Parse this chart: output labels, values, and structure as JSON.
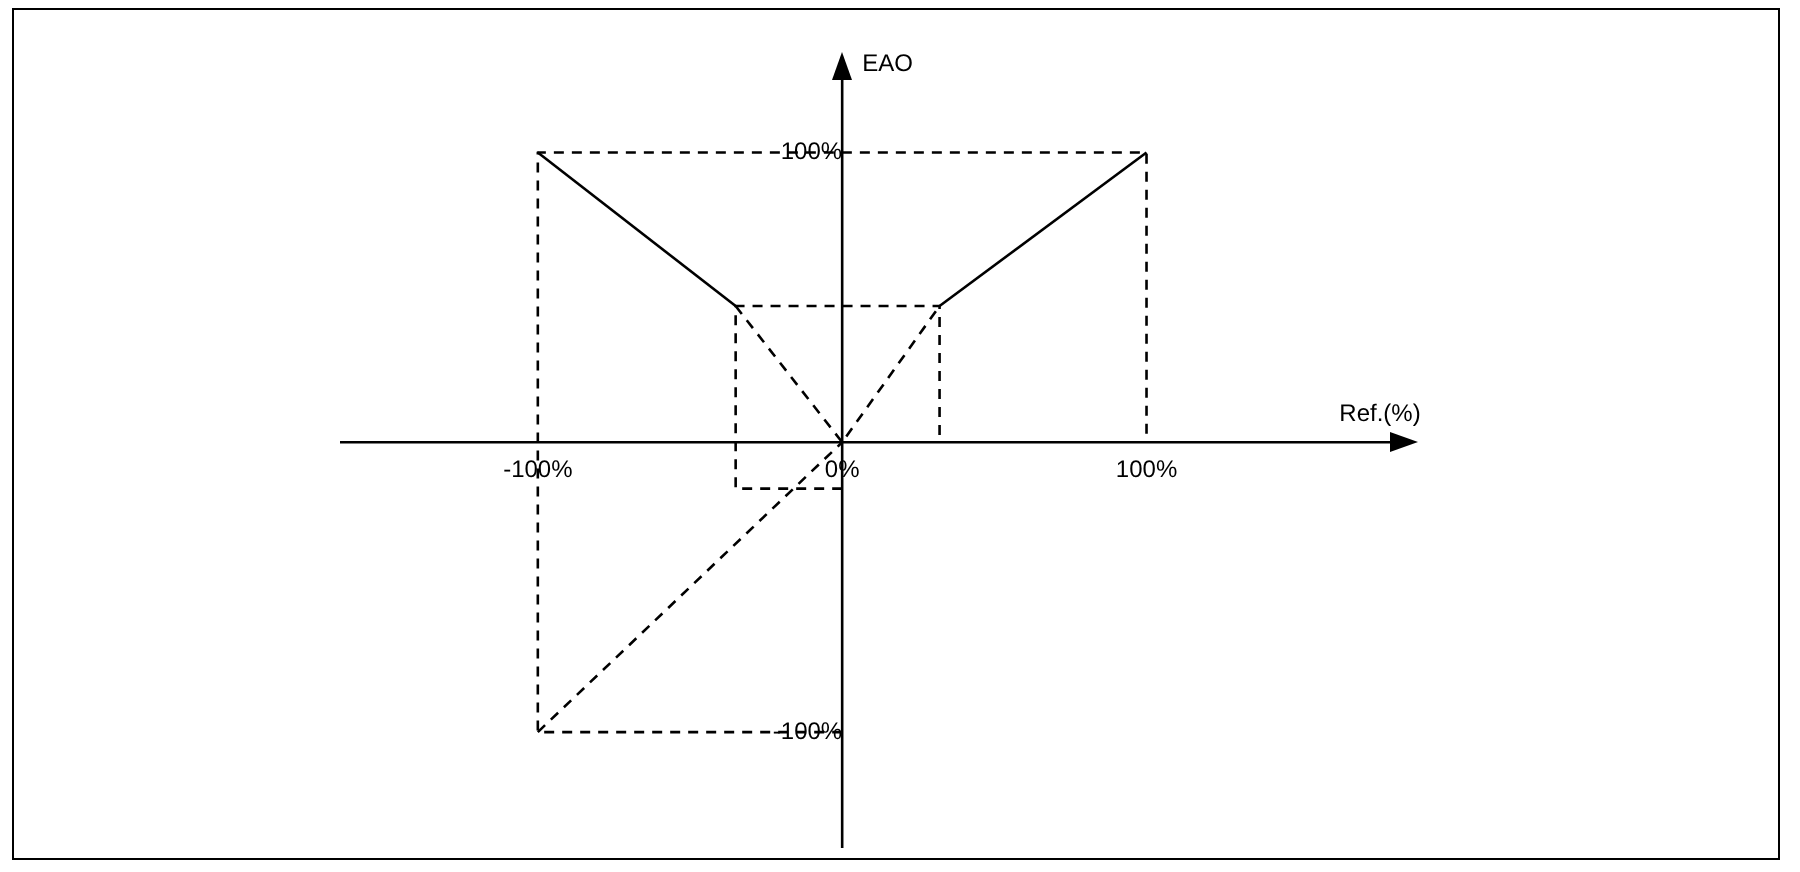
{
  "chart_data": {
    "type": "line",
    "xlabel": "Ref.(%)",
    "ylabel": "EAO",
    "xlim": [
      -165,
      180
    ],
    "ylim": [
      -140,
      125
    ],
    "xticks": [
      {
        "value": -100,
        "label": "-100%"
      },
      {
        "value": 0,
        "label": "0%"
      },
      {
        "value": 100,
        "label": "100%"
      }
    ],
    "yticks": [
      {
        "value": -100,
        "label": "-100%"
      },
      {
        "value": 100,
        "label": "100%"
      }
    ],
    "grid": false,
    "legend": false,
    "marker": "none",
    "series": [
      {
        "color": "#000000",
        "line_style": "solid",
        "x": [
          -100,
          -35
        ],
        "values": [
          100,
          47
        ]
      },
      {
        "color": "#000000",
        "line_style": "solid",
        "x": [
          32,
          100
        ],
        "values": [
          47,
          100
        ]
      },
      {
        "color": "#000000",
        "line_style": "dashed",
        "x": [
          0,
          -100,
          -100,
          100,
          100
        ],
        "values": [
          -100,
          -100,
          100,
          100,
          0
        ]
      },
      {
        "color": "#000000",
        "line_style": "dashed",
        "x": [
          0,
          -35,
          -35,
          32,
          32
        ],
        "values": [
          -16,
          -16,
          47,
          47,
          0
        ]
      },
      {
        "color": "#000000",
        "line_style": "dashed",
        "x": [
          -35,
          0,
          32
        ],
        "values": [
          47,
          0,
          47
        ]
      },
      {
        "color": "#000000",
        "line_style": "dashed",
        "x": [
          -100,
          0
        ],
        "values": [
          -100,
          0
        ]
      }
    ]
  }
}
